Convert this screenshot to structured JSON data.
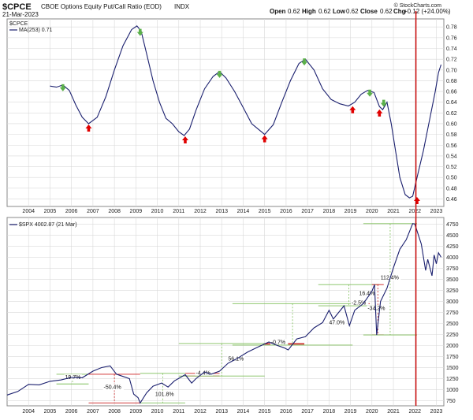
{
  "header": {
    "symbol": "$CPCE",
    "description": "CBOE Options Equity Put/Call Ratio (EOD)",
    "exchange": "INDX",
    "date": "21-Mar-2023",
    "open_label": "Open",
    "open": "0.62",
    "high_label": "High",
    "high": "0.62",
    "low_label": "Low",
    "low": "0.62",
    "close_label": "Close",
    "close": "0.62",
    "chg_label": "Chg",
    "chg": "+0.12 (+24.00%)",
    "watermark": "© StockCharts.com"
  },
  "colors": {
    "line": "#1a1f6e",
    "grid": "#d9d9d9",
    "panel_border": "#888888",
    "vline": "#cc0000",
    "up_arrow": "#e00000",
    "down_arrow": "#5bb04a",
    "range_green": "#7fbf5a",
    "range_red": "#cc2020"
  },
  "chart_data": [
    {
      "type": "line",
      "panel": "top",
      "legend_title": "$CPCE",
      "series": [
        {
          "name": "MA(253) 0.71",
          "x": [
            2005.0,
            2005.3,
            2005.6,
            2005.9,
            2006.2,
            2006.5,
            2006.8,
            2007.2,
            2007.6,
            2008.0,
            2008.4,
            2008.8,
            2009.05,
            2009.25,
            2009.5,
            2009.8,
            2010.1,
            2010.4,
            2010.7,
            2011.0,
            2011.25,
            2011.5,
            2011.8,
            2012.2,
            2012.6,
            2012.9,
            2013.2,
            2013.6,
            2014.0,
            2014.4,
            2014.7,
            2015.0,
            2015.4,
            2015.8,
            2016.2,
            2016.6,
            2016.9,
            2017.3,
            2017.7,
            2018.1,
            2018.5,
            2018.9,
            2019.2,
            2019.5,
            2019.8,
            2020.1,
            2020.35,
            2020.5,
            2020.7,
            2020.9,
            2021.1,
            2021.3,
            2021.55,
            2021.75,
            2021.9,
            2022.1,
            2022.4,
            2022.7,
            2022.95,
            2023.1,
            2023.22
          ],
          "y": [
            0.67,
            0.668,
            0.672,
            0.662,
            0.635,
            0.612,
            0.6,
            0.612,
            0.65,
            0.7,
            0.745,
            0.775,
            0.782,
            0.772,
            0.73,
            0.68,
            0.64,
            0.61,
            0.6,
            0.585,
            0.578,
            0.59,
            0.625,
            0.665,
            0.688,
            0.697,
            0.685,
            0.66,
            0.63,
            0.6,
            0.59,
            0.58,
            0.598,
            0.64,
            0.68,
            0.712,
            0.72,
            0.7,
            0.665,
            0.645,
            0.637,
            0.633,
            0.64,
            0.655,
            0.662,
            0.658,
            0.632,
            0.626,
            0.64,
            0.6,
            0.55,
            0.5,
            0.468,
            0.462,
            0.465,
            0.5,
            0.55,
            0.61,
            0.66,
            0.695,
            0.71
          ]
        }
      ],
      "up_arrows": [
        {
          "x": 2006.8,
          "y": 0.6
        },
        {
          "x": 2011.3,
          "y": 0.578
        },
        {
          "x": 2015.0,
          "y": 0.58
        },
        {
          "x": 2019.1,
          "y": 0.634
        },
        {
          "x": 2020.35,
          "y": 0.628
        },
        {
          "x": 2022.1,
          "y": 0.465
        }
      ],
      "down_arrows": [
        {
          "x": 2005.6,
          "y": 0.672
        },
        {
          "x": 2009.2,
          "y": 0.775
        },
        {
          "x": 2012.9,
          "y": 0.697
        },
        {
          "x": 2016.85,
          "y": 0.72
        },
        {
          "x": 2019.9,
          "y": 0.662
        },
        {
          "x": 2020.55,
          "y": 0.643
        }
      ],
      "xlim": [
        2003.0,
        2023.35
      ],
      "ylim": [
        0.446,
        0.795
      ],
      "yticks": [
        0.46,
        0.48,
        0.5,
        0.52,
        0.54,
        0.56,
        0.58,
        0.6,
        0.62,
        0.64,
        0.66,
        0.68,
        0.7,
        0.72,
        0.74,
        0.76,
        0.78
      ],
      "ytick_labels": [
        "0.46",
        "0.48",
        "0.50",
        "0.52",
        "0.54",
        "0.56",
        "0.58",
        "0.60",
        "0.62",
        "0.64",
        "0.66",
        "0.68",
        "0.70",
        "0.72",
        "0.74",
        "0.76",
        "0.78"
      ],
      "xticks": [
        2004,
        2005,
        2006,
        2007,
        2008,
        2009,
        2010,
        2011,
        2012,
        2013,
        2014,
        2015,
        2016,
        2017,
        2018,
        2019,
        2020,
        2021,
        2022,
        2023
      ],
      "xtick_labels": [
        "2004",
        "2005",
        "2006",
        "2007",
        "2008",
        "2009",
        "2010",
        "2011",
        "2012",
        "2013",
        "2014",
        "2015",
        "2016",
        "2017",
        "2018",
        "2019",
        "2020",
        "2021",
        "2022",
        "2023"
      ],
      "vline_x": 2022.05,
      "grid": true
    },
    {
      "type": "line",
      "panel": "bottom",
      "legend_title": "$SPX 4002.87 (21 Mar)",
      "series": [
        {
          "name": "$SPX",
          "x": [
            2003.0,
            2003.5,
            2004.0,
            2004.5,
            2005.0,
            2005.5,
            2006.0,
            2006.5,
            2007.0,
            2007.4,
            2007.8,
            2008.1,
            2008.4,
            2008.7,
            2008.9,
            2009.1,
            2009.2,
            2009.5,
            2009.8,
            2010.2,
            2010.5,
            2010.8,
            2011.3,
            2011.6,
            2011.8,
            2012.2,
            2012.5,
            2012.9,
            2013.3,
            2013.7,
            2014.2,
            2014.7,
            2015.2,
            2015.6,
            2015.9,
            2016.1,
            2016.5,
            2016.9,
            2017.3,
            2017.7,
            2018.0,
            2018.2,
            2018.7,
            2018.95,
            2019.2,
            2019.6,
            2020.0,
            2020.12,
            2020.22,
            2020.4,
            2020.7,
            2021.0,
            2021.3,
            2021.6,
            2021.9,
            2022.0,
            2022.3,
            2022.5,
            2022.6,
            2022.8,
            2022.9,
            2023.0,
            2023.1,
            2023.22
          ],
          "y": [
            880,
            960,
            1120,
            1110,
            1190,
            1220,
            1280,
            1270,
            1420,
            1500,
            1540,
            1350,
            1300,
            1250,
            900,
            820,
            700,
            930,
            1080,
            1150,
            1060,
            1200,
            1340,
            1150,
            1250,
            1400,
            1350,
            1420,
            1600,
            1700,
            1850,
            1970,
            2080,
            2000,
            1950,
            1900,
            2150,
            2200,
            2400,
            2520,
            2800,
            2600,
            2900,
            2450,
            2800,
            2950,
            3230,
            3380,
            2240,
            3000,
            3300,
            3760,
            4180,
            4400,
            4760,
            4750,
            4300,
            3700,
            3950,
            3580,
            4050,
            3850,
            4100,
            4000
          ]
        }
      ],
      "xlim": [
        2003.0,
        2023.35
      ],
      "ylim": [
        635,
        4900
      ],
      "yticks": [
        750,
        1000,
        1250,
        1500,
        1750,
        2000,
        2250,
        2500,
        2750,
        3000,
        3250,
        3500,
        3750,
        4000,
        4250,
        4500,
        4750
      ],
      "ytick_labels": [
        "750",
        "1000",
        "1250",
        "1500",
        "1750",
        "2000",
        "2250",
        "2500",
        "2750",
        "3000",
        "3250",
        "3500",
        "3750",
        "4000",
        "4250",
        "4500",
        "4750"
      ],
      "xticks": [
        2004,
        2005,
        2006,
        2007,
        2008,
        2009,
        2010,
        2011,
        2012,
        2013,
        2014,
        2015,
        2016,
        2017,
        2018,
        2019,
        2020,
        2021,
        2022,
        2023
      ],
      "xtick_labels": [
        "2004",
        "2005",
        "2006",
        "2007",
        "2008",
        "2009",
        "2010",
        "2011",
        "2012",
        "2013",
        "2014",
        "2015",
        "2016",
        "2017",
        "2018",
        "2019",
        "2020",
        "2021",
        "2022",
        "2023"
      ],
      "vline_x": 2022.05,
      "grid": true,
      "annotations": [
        {
          "text": "19.7%",
          "color": "green",
          "x1": 2005.3,
          "x2": 2006.8,
          "y_low": 1130,
          "y_high": 1350,
          "label_x": 2005.7,
          "label_y": 1240
        },
        {
          "text": "-50.4%",
          "color": "red",
          "x1": 2006.8,
          "x2": 2009.2,
          "y_low": 700,
          "y_high": 1350,
          "label_x": 2007.5,
          "label_y": 1020
        },
        {
          "text": "101.8%",
          "color": "green",
          "x1": 2009.2,
          "x2": 2011.3,
          "y_low": 700,
          "y_high": 1370,
          "label_x": 2009.9,
          "label_y": 860
        },
        {
          "text": "-4.4%",
          "color": "red",
          "x1": 2011.3,
          "x2": 2012.9,
          "y_low": 1310,
          "y_high": 1370,
          "label_x": 2011.8,
          "label_y": 1342
        },
        {
          "text": "56.1%",
          "color": "green",
          "x1": 2011.0,
          "x2": 2015.0,
          "y_low": 1310,
          "y_high": 2045,
          "label_x": 2013.3,
          "label_y": 1660
        },
        {
          "text": "-0.7%",
          "color": "red",
          "x1": 2015.0,
          "x2": 2016.85,
          "y_low": 2030,
          "y_high": 2045,
          "label_x": 2015.3,
          "label_y": 2038
        },
        {
          "text": "47.0%",
          "color": "green",
          "x1": 2013.5,
          "x2": 2019.1,
          "y_low": 2010,
          "y_high": 2950,
          "label_x": 2018.0,
          "label_y": 2480
        },
        {
          "text": "-2.5%",
          "color": "red",
          "x1": 2019.1,
          "x2": 2019.9,
          "y_low": 2900,
          "y_high": 2950,
          "label_x": 2019.05,
          "label_y": 2925
        },
        {
          "text": "16.4%",
          "color": "green",
          "x1": 2017.5,
          "x2": 2020.35,
          "y_low": 2900,
          "y_high": 3380,
          "label_x": 2019.4,
          "label_y": 3140
        },
        {
          "text": "-34.2%",
          "color": "red",
          "x1": 2020.0,
          "x2": 2020.55,
          "y_low": 2240,
          "y_high": 3380,
          "label_x": 2019.8,
          "label_y": 2800
        },
        {
          "text": "112.4%",
          "color": "green",
          "x1": 2019.6,
          "x2": 2022.1,
          "y_low": 2240,
          "y_high": 4760,
          "label_x": 2020.4,
          "label_y": 3500
        }
      ]
    }
  ]
}
